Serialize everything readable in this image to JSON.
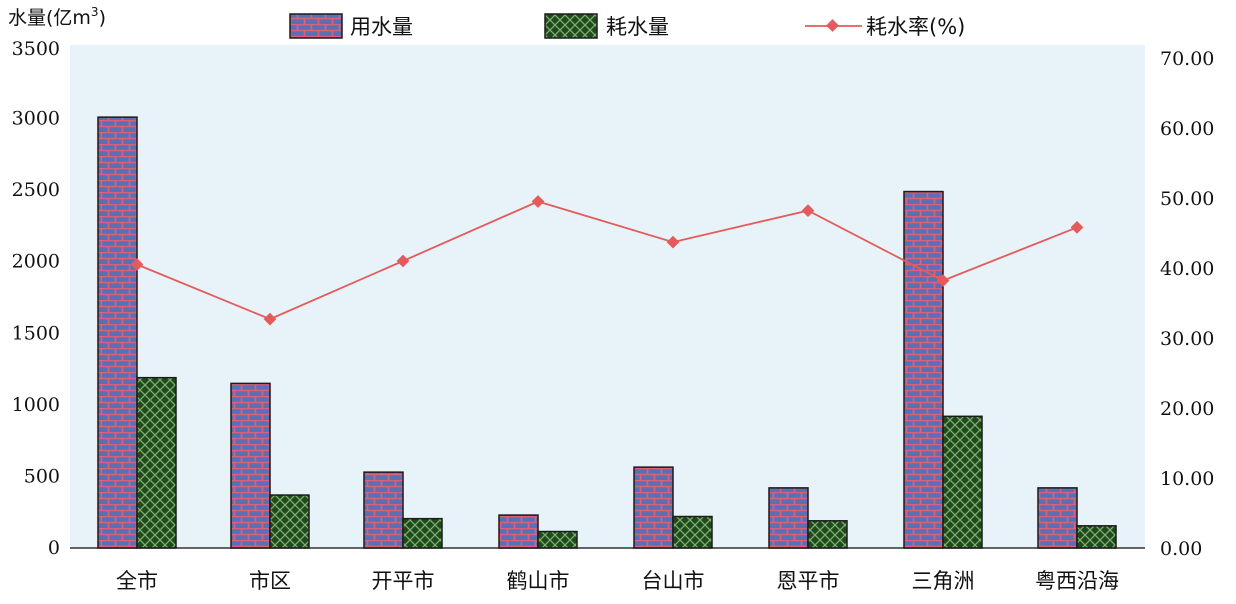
{
  "chart_data": {
    "type": "bar",
    "title": "",
    "y_left_label": "水量(亿m",
    "y_left_label_sup": "3",
    "y_left_label_close": ")",
    "ylim_left": [
      0,
      3500
    ],
    "ylim_right": [
      0,
      70
    ],
    "left_ticks": [
      "3500",
      "3000",
      "2500",
      "2000",
      "1500",
      "1000",
      "500",
      "0"
    ],
    "right_ticks": [
      "70.00",
      "60.00",
      "50.00",
      "40.00",
      "30.00",
      "20.00",
      "10.00",
      "0.00"
    ],
    "categories": [
      "全市",
      "市区",
      "开平市",
      "鹤山市",
      "台山市",
      "恩平市",
      "三角洲",
      "粤西沿海"
    ],
    "series": [
      {
        "name": "用水量",
        "type": "bar",
        "axis": "left",
        "values": [
          3010,
          1150,
          530,
          230,
          565,
          420,
          2490,
          420
        ]
      },
      {
        "name": "耗水量",
        "type": "bar",
        "axis": "left",
        "values": [
          1190,
          370,
          205,
          115,
          220,
          190,
          920,
          155
        ]
      },
      {
        "name": "耗水率(%)",
        "type": "line",
        "axis": "right",
        "values": [
          40.5,
          32.7,
          41.0,
          49.5,
          43.7,
          48.2,
          38.2,
          45.8
        ]
      }
    ],
    "colors": {
      "use_bar": "#5b6fb5",
      "use_brick": "#d9627a",
      "cons_bar": "#1f4a1f",
      "cons_hatch": "#7fae6a",
      "rate": "#e45b5b"
    },
    "legend_position": "top"
  }
}
